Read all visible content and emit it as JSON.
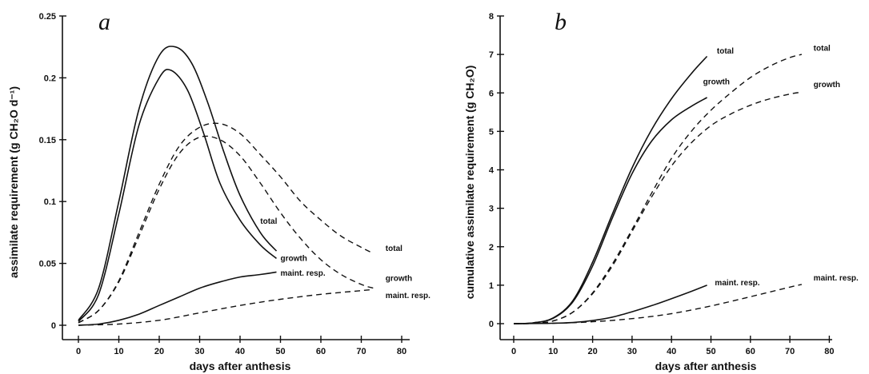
{
  "chart_data": [
    {
      "type": "line",
      "panel": "a",
      "xlabel": "days after anthesis",
      "ylabel": "assimilate requirement (g CH₂O d⁻¹)",
      "xlim": [
        -5,
        80
      ],
      "ylim": [
        -0.01,
        0.25
      ],
      "xticks": [
        0,
        10,
        20,
        30,
        40,
        50,
        60,
        70,
        80
      ],
      "xtick_labels": [
        "0",
        "10",
        "20",
        "30",
        "40",
        "50",
        "60",
        "70",
        "80"
      ],
      "yticks": [
        0,
        0.05,
        0.1,
        0.15,
        0.2,
        0.25
      ],
      "ytick_labels": [
        "0",
        "0.05",
        "0.1",
        "0.15",
        "0.2",
        "0.25"
      ],
      "grid": false,
      "series": [
        {
          "name": "total",
          "style": "solid",
          "label_at": [
            45,
            0.082
          ],
          "x": [
            0,
            5,
            10,
            15,
            20,
            24,
            28,
            32,
            36,
            40,
            45,
            49
          ],
          "y": [
            0.004,
            0.03,
            0.1,
            0.175,
            0.218,
            0.225,
            0.212,
            0.18,
            0.14,
            0.105,
            0.075,
            0.06
          ]
        },
        {
          "name": "growth",
          "style": "solid",
          "label_at": [
            50,
            0.052
          ],
          "x": [
            0,
            5,
            10,
            15,
            20,
            23,
            27,
            31,
            35,
            40,
            45,
            49
          ],
          "y": [
            0.003,
            0.025,
            0.09,
            0.162,
            0.2,
            0.206,
            0.19,
            0.155,
            0.115,
            0.085,
            0.065,
            0.054
          ]
        },
        {
          "name": "maint. resp.",
          "style": "solid",
          "label_at": [
            50,
            0.04
          ],
          "x": [
            0,
            5,
            10,
            15,
            20,
            25,
            30,
            35,
            40,
            45,
            49
          ],
          "y": [
            0,
            0.001,
            0.004,
            0.009,
            0.016,
            0.023,
            0.03,
            0.035,
            0.039,
            0.041,
            0.043
          ]
        },
        {
          "name": "total",
          "style": "dashed",
          "label_at": [
            76,
            0.06
          ],
          "x": [
            0,
            5,
            10,
            15,
            20,
            25,
            30,
            35,
            40,
            45,
            50,
            55,
            60,
            65,
            70,
            73
          ],
          "y": [
            0.002,
            0.012,
            0.036,
            0.075,
            0.114,
            0.145,
            0.16,
            0.163,
            0.155,
            0.138,
            0.12,
            0.1,
            0.085,
            0.072,
            0.063,
            0.058
          ]
        },
        {
          "name": "growth",
          "style": "dashed",
          "label_at": [
            76,
            0.036
          ],
          "x": [
            0,
            5,
            10,
            15,
            20,
            25,
            30,
            35,
            40,
            45,
            50,
            55,
            60,
            65,
            70,
            73
          ],
          "y": [
            0.002,
            0.012,
            0.035,
            0.072,
            0.11,
            0.139,
            0.152,
            0.15,
            0.137,
            0.115,
            0.091,
            0.07,
            0.053,
            0.041,
            0.033,
            0.03
          ]
        },
        {
          "name": "maint. resp.",
          "style": "dashed",
          "label_at": [
            76,
            0.022
          ],
          "x": [
            0,
            10,
            20,
            30,
            40,
            50,
            60,
            70,
            73
          ],
          "y": [
            0,
            0.001,
            0.004,
            0.01,
            0.016,
            0.021,
            0.025,
            0.028,
            0.029
          ]
        }
      ]
    },
    {
      "type": "line",
      "panel": "b",
      "xlabel": "days after anthesis",
      "ylabel": "cumulative assimilate requirement (g CH₂O)",
      "xlim": [
        -5,
        80
      ],
      "ylim": [
        -0.3,
        8
      ],
      "xticks": [
        0,
        10,
        20,
        30,
        40,
        50,
        60,
        70,
        80
      ],
      "xtick_labels": [
        "0",
        "10",
        "20",
        "30",
        "40",
        "50",
        "60",
        "70",
        "80"
      ],
      "yticks": [
        0,
        1,
        2,
        3,
        4,
        5,
        6,
        7,
        8
      ],
      "ytick_labels": [
        "0",
        "1",
        "2",
        "3",
        "4",
        "5",
        "6",
        "7",
        "8"
      ],
      "grid": false,
      "series": [
        {
          "name": "total",
          "style": "solid",
          "label_at": [
            51.5,
            7.02
          ],
          "x": [
            0,
            5,
            10,
            15,
            20,
            25,
            30,
            35,
            40,
            45,
            49
          ],
          "y": [
            0,
            0.02,
            0.15,
            0.6,
            1.6,
            2.85,
            4.05,
            5.05,
            5.85,
            6.5,
            6.95
          ]
        },
        {
          "name": "growth",
          "style": "solid",
          "label_at": [
            48,
            6.22
          ],
          "x": [
            0,
            5,
            10,
            15,
            20,
            25,
            30,
            35,
            40,
            45,
            49
          ],
          "y": [
            0,
            0.02,
            0.14,
            0.57,
            1.5,
            2.75,
            3.9,
            4.75,
            5.3,
            5.65,
            5.88
          ]
        },
        {
          "name": "maint. resp.",
          "style": "solid",
          "label_at": [
            51,
            1.0
          ],
          "x": [
            0,
            10,
            15,
            20,
            25,
            30,
            35,
            40,
            45,
            49
          ],
          "y": [
            0,
            0.01,
            0.03,
            0.08,
            0.17,
            0.31,
            0.47,
            0.65,
            0.84,
            1.0
          ]
        },
        {
          "name": "total",
          "style": "dashed",
          "label_at": [
            76,
            7.1
          ],
          "x": [
            0,
            5,
            10,
            15,
            20,
            25,
            30,
            35,
            40,
            45,
            50,
            55,
            60,
            65,
            70,
            73
          ],
          "y": [
            0,
            0.01,
            0.07,
            0.3,
            0.8,
            1.55,
            2.45,
            3.4,
            4.3,
            5.0,
            5.55,
            6.0,
            6.4,
            6.7,
            6.92,
            7.0
          ]
        },
        {
          "name": "growth",
          "style": "dashed",
          "label_at": [
            76,
            6.15
          ],
          "x": [
            0,
            5,
            10,
            15,
            20,
            25,
            30,
            35,
            40,
            45,
            50,
            55,
            60,
            65,
            70,
            73
          ],
          "y": [
            0,
            0.01,
            0.07,
            0.3,
            0.78,
            1.5,
            2.4,
            3.3,
            4.1,
            4.7,
            5.15,
            5.45,
            5.68,
            5.85,
            5.97,
            6.02
          ]
        },
        {
          "name": "maint. resp.",
          "style": "dashed",
          "label_at": [
            76,
            1.12
          ],
          "x": [
            0,
            10,
            20,
            30,
            40,
            50,
            60,
            70,
            73
          ],
          "y": [
            0,
            0.01,
            0.05,
            0.13,
            0.26,
            0.46,
            0.7,
            0.95,
            1.02
          ]
        }
      ]
    }
  ]
}
